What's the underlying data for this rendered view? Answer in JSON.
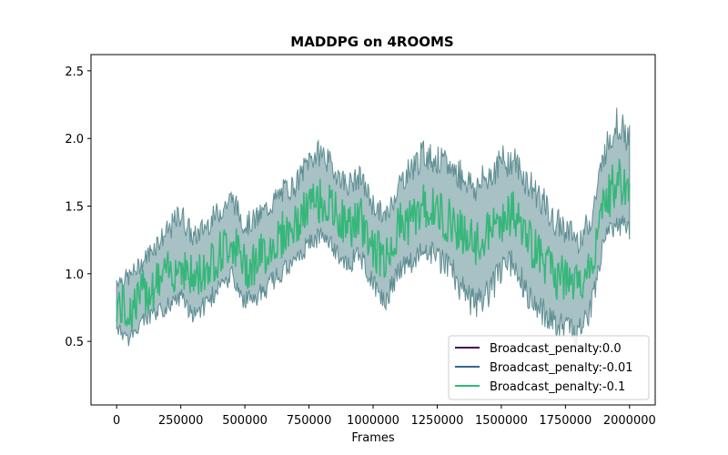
{
  "chart_data": {
    "type": "line",
    "title": "MADDPG on 4ROOMS",
    "xlabel": "Frames",
    "ylabel": "",
    "xlim": [
      -100000,
      2100000
    ],
    "ylim": [
      0.03,
      2.62
    ],
    "xticks": [
      0,
      250000,
      500000,
      750000,
      1000000,
      1250000,
      1500000,
      1750000,
      2000000
    ],
    "yticks": [
      0.5,
      1.0,
      1.5,
      2.0,
      2.5
    ],
    "ytick_labels": [
      "0.5",
      "1.0",
      "1.5",
      "2.0",
      "2.5"
    ],
    "grid": false,
    "legend_position": "lower-right",
    "band_color": "#5f8e93",
    "series": [
      {
        "name": "Broadcast_penalty:0.0",
        "color": "#440154",
        "x": [],
        "y": []
      },
      {
        "name": "Broadcast_penalty:-0.01",
        "color": "#31688e",
        "x": [],
        "y": []
      },
      {
        "name": "Broadcast_penalty:-0.1",
        "color": "#35b779",
        "x": [
          0,
          50000,
          100000,
          150000,
          200000,
          250000,
          300000,
          350000,
          400000,
          450000,
          500000,
          550000,
          600000,
          650000,
          700000,
          750000,
          800000,
          850000,
          900000,
          950000,
          1000000,
          1050000,
          1100000,
          1150000,
          1200000,
          1250000,
          1300000,
          1350000,
          1400000,
          1450000,
          1500000,
          1550000,
          1600000,
          1650000,
          1700000,
          1750000,
          1800000,
          1850000,
          1900000,
          1950000,
          2000000
        ],
        "y": [
          0.78,
          0.72,
          0.85,
          0.92,
          1.0,
          1.08,
          0.95,
          1.05,
          1.15,
          1.25,
          1.05,
          1.1,
          1.2,
          1.3,
          1.35,
          1.5,
          1.55,
          1.45,
          1.35,
          1.4,
          1.2,
          1.1,
          1.35,
          1.4,
          1.5,
          1.45,
          1.4,
          1.3,
          1.2,
          1.3,
          1.4,
          1.45,
          1.25,
          1.15,
          1.0,
          0.95,
          0.9,
          1.05,
          1.5,
          1.7,
          1.6
        ],
        "low": [
          0.55,
          0.45,
          0.6,
          0.62,
          0.7,
          0.75,
          0.62,
          0.7,
          0.82,
          0.9,
          0.72,
          0.75,
          0.85,
          0.95,
          1.0,
          1.15,
          1.2,
          1.1,
          1.0,
          1.05,
          0.85,
          0.7,
          0.95,
          1.0,
          1.1,
          1.0,
          0.95,
          0.75,
          0.65,
          0.75,
          0.9,
          1.0,
          0.7,
          0.6,
          0.55,
          0.5,
          0.45,
          0.65,
          1.15,
          1.3,
          1.2
        ],
        "high": [
          1.0,
          1.05,
          1.15,
          1.3,
          1.4,
          1.55,
          1.35,
          1.45,
          1.55,
          1.65,
          1.45,
          1.5,
          1.6,
          1.7,
          1.75,
          1.95,
          2.0,
          1.85,
          1.75,
          1.8,
          1.6,
          1.5,
          1.75,
          1.9,
          2.0,
          1.95,
          1.9,
          1.85,
          1.75,
          1.85,
          1.95,
          1.95,
          1.8,
          1.7,
          1.5,
          1.45,
          1.35,
          1.5,
          2.0,
          2.25,
          2.1
        ]
      }
    ]
  }
}
